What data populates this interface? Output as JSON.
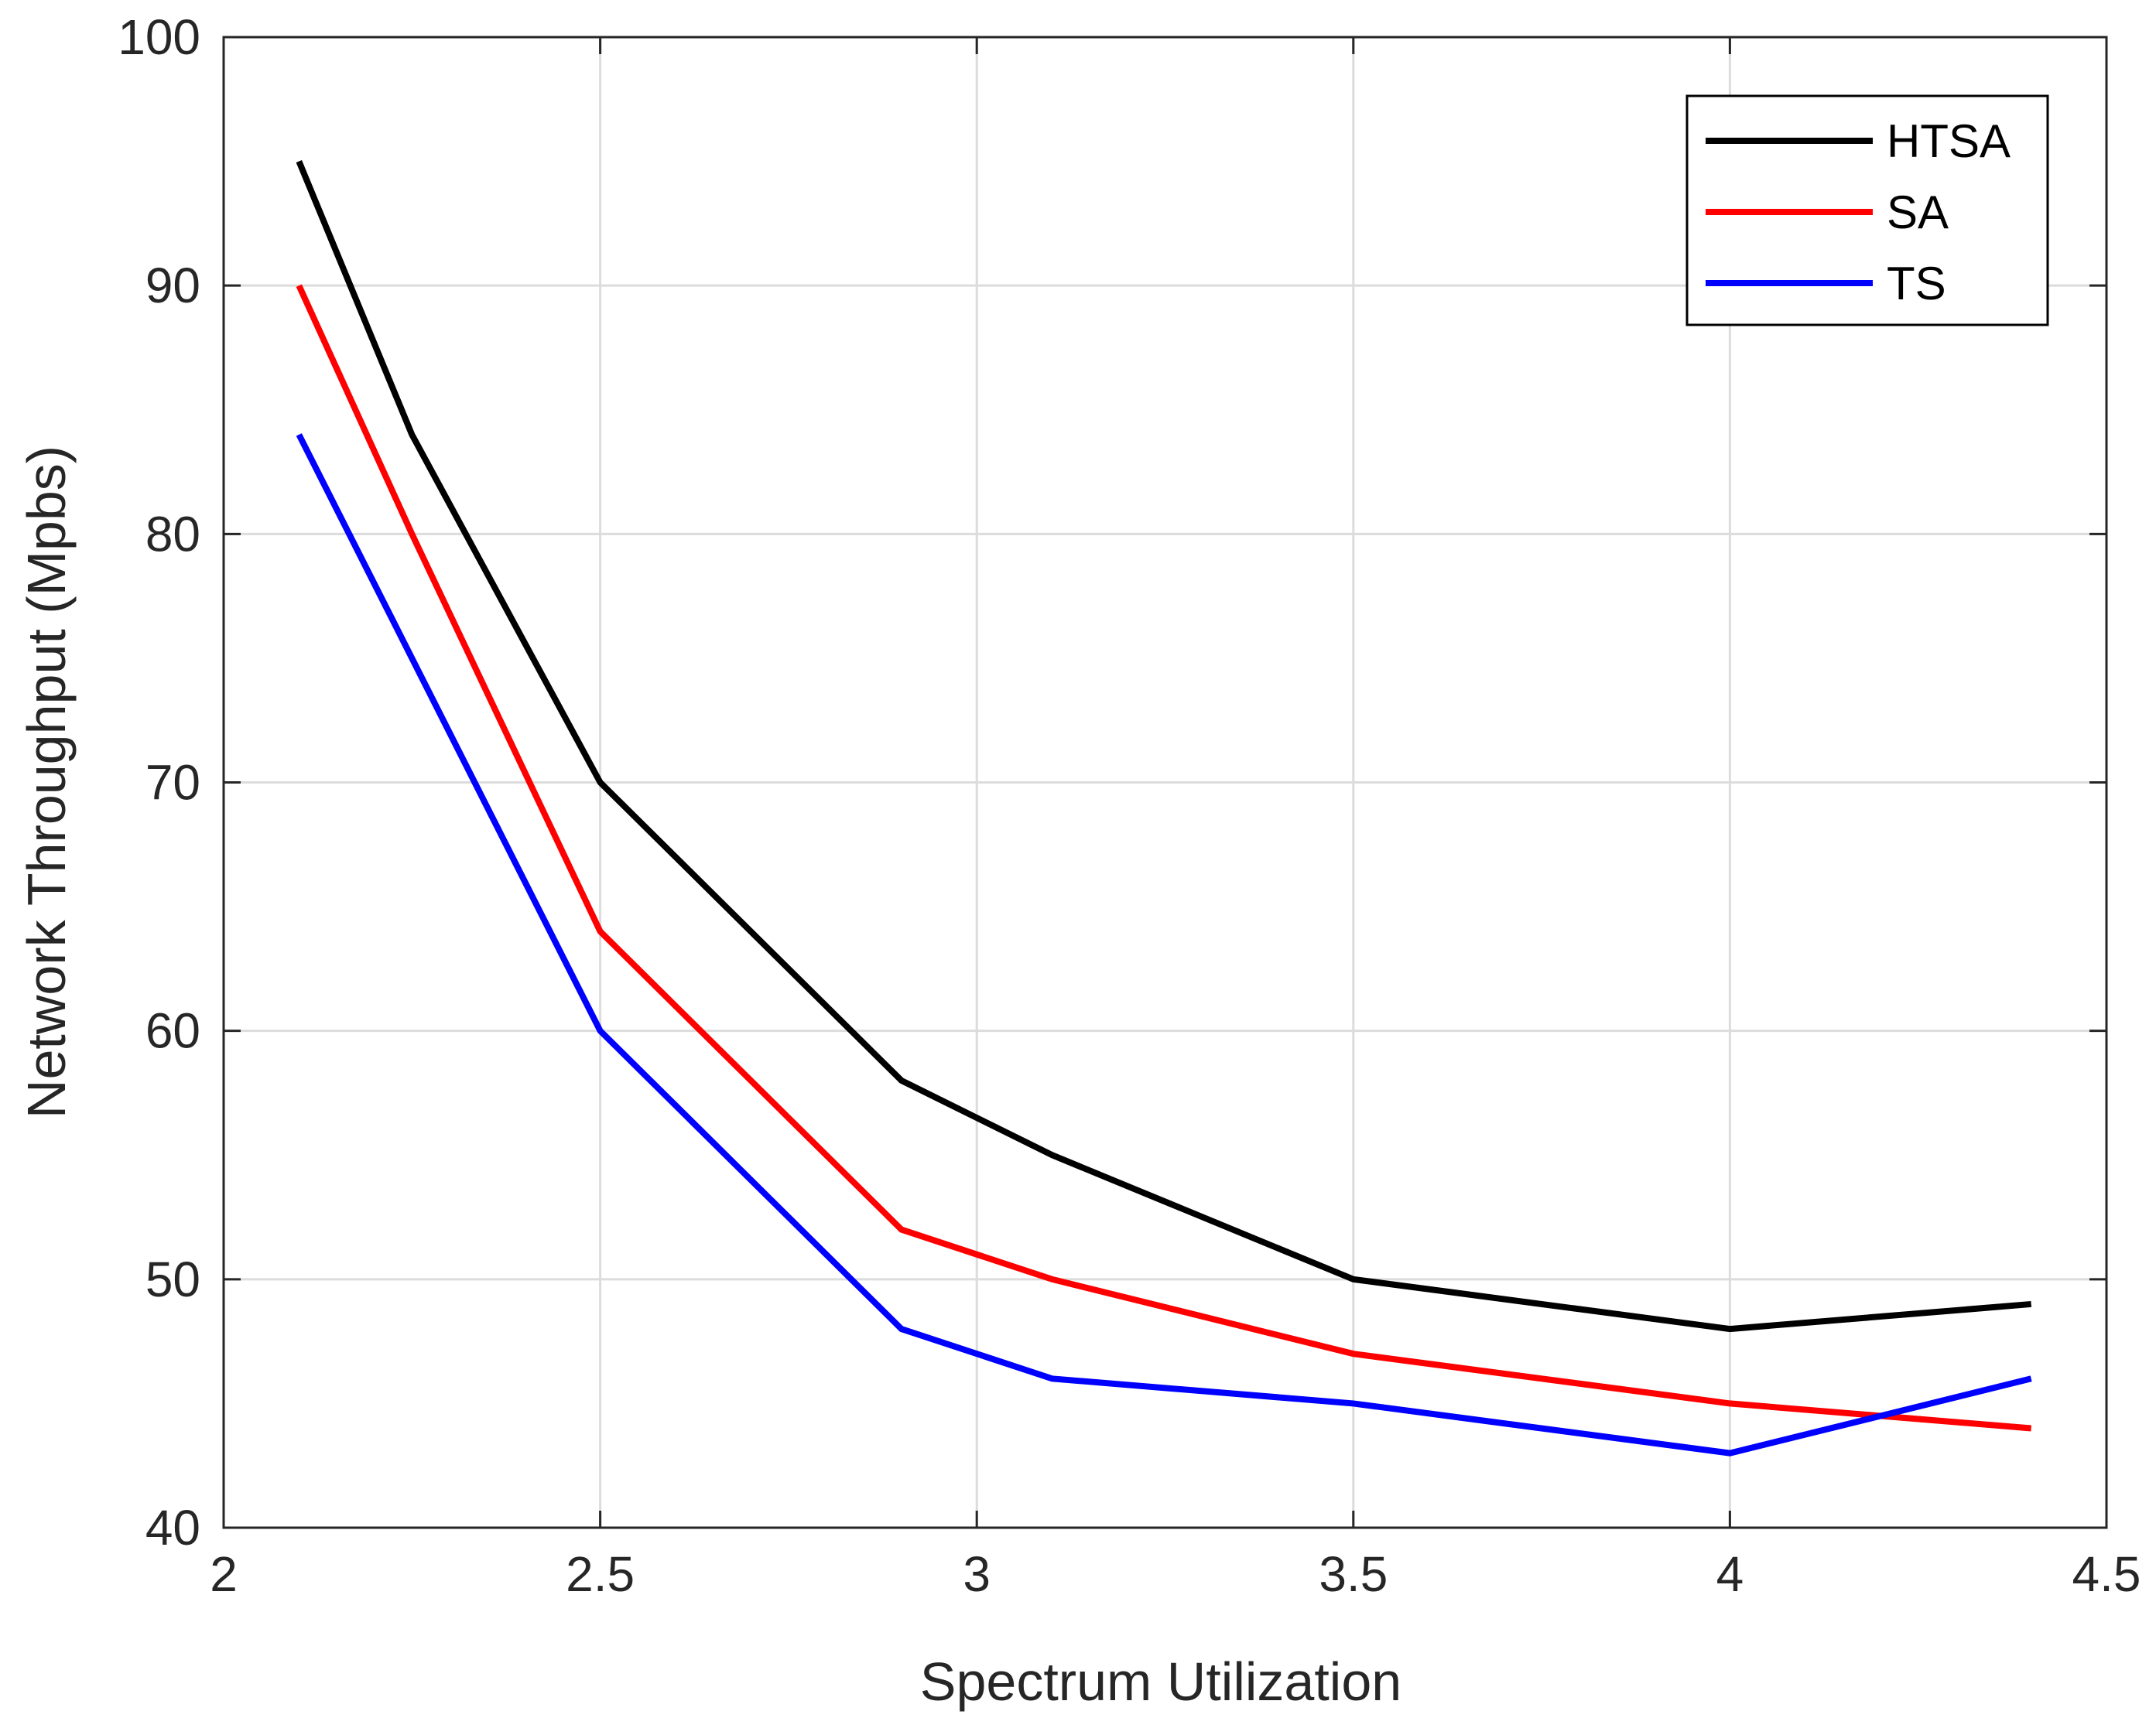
{
  "chart_data": {
    "type": "line",
    "title": "",
    "xlabel": "Spectrum Utilization",
    "ylabel": "Network Throughput (Mpbs)",
    "xlim": [
      2,
      4.5
    ],
    "ylim": [
      40,
      100
    ],
    "xticks": [
      2,
      2.5,
      3,
      3.5,
      4,
      4.5
    ],
    "xtick_labels": [
      "2",
      "2.5",
      "3",
      "3.5",
      "4",
      "4.5"
    ],
    "yticks": [
      40,
      50,
      60,
      70,
      80,
      90,
      100
    ],
    "ytick_labels": [
      "40",
      "50",
      "60",
      "70",
      "80",
      "90",
      "100"
    ],
    "grid": true,
    "legend_position": "top-right",
    "x": [
      2.1,
      2.25,
      2.5,
      2.9,
      3.1,
      3.5,
      4.0,
      4.4
    ],
    "series": [
      {
        "name": "HTSA",
        "color": "#000000",
        "values": [
          95,
          84,
          70,
          58,
          55,
          50,
          48,
          49
        ]
      },
      {
        "name": "SA",
        "color": "#ff0000",
        "values": [
          90,
          80,
          64,
          52,
          50,
          47,
          45,
          44
        ]
      },
      {
        "name": "TS",
        "color": "#0000ff",
        "values": [
          84,
          75,
          60,
          48,
          46,
          45,
          43,
          46
        ]
      }
    ]
  }
}
